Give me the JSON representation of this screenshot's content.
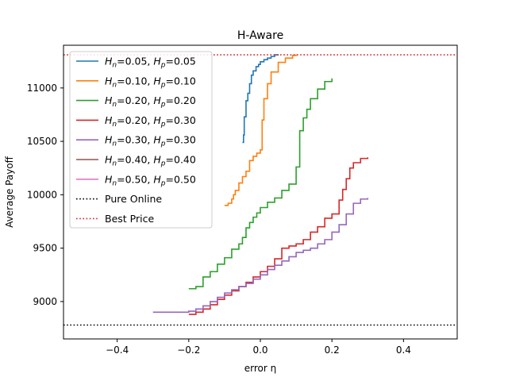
{
  "chart_data": {
    "type": "line",
    "title": "H-Aware",
    "xlabel": "error η",
    "ylabel": "Average Payoff",
    "xlim": [
      -0.55,
      0.55
    ],
    "ylim": [
      8650,
      11400
    ],
    "xticks": [
      -0.4,
      -0.2,
      0.0,
      0.2,
      0.4
    ],
    "xtick_labels": [
      "−0.4",
      "−0.2",
      "0.0",
      "0.2",
      "0.4"
    ],
    "yticks": [
      9000,
      9500,
      10000,
      10500,
      11000
    ],
    "ytick_labels": [
      "9000",
      "9500",
      "10000",
      "10500",
      "11000"
    ],
    "legend_position": "upper-left",
    "grid": false,
    "series": [
      {
        "name": "Hn=0.05, Hp=0.05",
        "legend_html": "<tspan font-style='italic'>H</tspan><tspan font-style='italic' font-size='9' dy='3'>n</tspan><tspan dy='-3'>=0.05, </tspan><tspan font-style='italic'>H</tspan><tspan font-style='italic' font-size='9' dy='3'>p</tspan><tspan dy='-3'>=0.05</tspan>",
        "color": "#1f77b4",
        "style": "solid",
        "x": [
          -0.05,
          -0.047,
          -0.045,
          -0.04,
          -0.035,
          -0.03,
          -0.025,
          -0.02,
          -0.012,
          -0.005,
          0.0,
          0.01,
          0.02,
          0.03,
          0.04,
          0.05
        ],
        "y": [
          10490,
          10560,
          10730,
          10880,
          10950,
          11040,
          11120,
          11160,
          11200,
          11220,
          11245,
          11265,
          11280,
          11295,
          11310,
          11315
        ]
      },
      {
        "name": "Hn=0.10, Hp=0.10",
        "color": "#ff7f0e",
        "style": "solid",
        "x": [
          -0.1,
          -0.09,
          -0.08,
          -0.075,
          -0.07,
          -0.06,
          -0.05,
          -0.04,
          -0.03,
          -0.02,
          -0.01,
          0.0,
          0.005,
          0.01,
          0.02,
          0.03,
          0.05,
          0.07,
          0.09,
          0.1
        ],
        "y": [
          9900,
          9920,
          9960,
          10000,
          10040,
          10110,
          10170,
          10220,
          10320,
          10360,
          10390,
          10420,
          10700,
          10900,
          11040,
          11150,
          11240,
          11280,
          11305,
          11315
        ]
      },
      {
        "name": "Hn=0.20, Hp=0.20",
        "color": "#2ca02c",
        "style": "solid",
        "x": [
          -0.2,
          -0.18,
          -0.16,
          -0.14,
          -0.12,
          -0.1,
          -0.08,
          -0.06,
          -0.05,
          -0.04,
          -0.03,
          -0.02,
          -0.01,
          0.0,
          0.02,
          0.04,
          0.06,
          0.08,
          0.1,
          0.11,
          0.12,
          0.13,
          0.14,
          0.16,
          0.18,
          0.2
        ],
        "y": [
          9120,
          9140,
          9230,
          9280,
          9350,
          9410,
          9490,
          9540,
          9600,
          9690,
          9740,
          9790,
          9830,
          9880,
          9930,
          9970,
          10040,
          10100,
          10260,
          10600,
          10720,
          10800,
          10900,
          10990,
          11060,
          11090
        ]
      },
      {
        "name": "Hn=0.20, Hp=0.30",
        "color": "#d62728",
        "style": "solid",
        "x": [
          -0.2,
          -0.18,
          -0.16,
          -0.14,
          -0.12,
          -0.1,
          -0.08,
          -0.06,
          -0.04,
          -0.02,
          0.0,
          0.02,
          0.04,
          0.06,
          0.08,
          0.1,
          0.12,
          0.14,
          0.16,
          0.18,
          0.2,
          0.22,
          0.23,
          0.24,
          0.25,
          0.26,
          0.28,
          0.3
        ],
        "y": [
          8880,
          8900,
          8930,
          8970,
          9020,
          9060,
          9100,
          9140,
          9180,
          9230,
          9280,
          9330,
          9400,
          9500,
          9520,
          9540,
          9580,
          9650,
          9700,
          9780,
          9820,
          9950,
          10050,
          10150,
          10250,
          10300,
          10340,
          10350
        ]
      },
      {
        "name": "Hn=0.30, Hp=0.30",
        "color": "#9467bd",
        "style": "solid",
        "x": [
          -0.3,
          -0.25,
          -0.2,
          -0.18,
          -0.16,
          -0.14,
          -0.12,
          -0.1,
          -0.08,
          -0.06,
          -0.04,
          -0.02,
          0.0,
          0.02,
          0.04,
          0.06,
          0.08,
          0.1,
          0.12,
          0.14,
          0.16,
          0.18,
          0.2,
          0.22,
          0.24,
          0.26,
          0.28,
          0.3
        ],
        "y": [
          8900,
          8900,
          8910,
          8930,
          8960,
          9000,
          9040,
          9080,
          9110,
          9140,
          9170,
          9210,
          9250,
          9300,
          9340,
          9380,
          9420,
          9460,
          9480,
          9500,
          9540,
          9580,
          9650,
          9720,
          9820,
          9920,
          9960,
          9970
        ]
      },
      {
        "name": "Hn=0.40, Hp=0.40",
        "color": "#8c564b",
        "style": "solid",
        "x": [],
        "y": []
      },
      {
        "name": "Hn=0.50, Hp=0.50",
        "color": "#e377c2",
        "style": "solid",
        "x": [],
        "y": []
      },
      {
        "name": "Pure Online",
        "color": "#000000",
        "style": "dotted",
        "hline": 8780
      },
      {
        "name": "Best Price",
        "color": "#d62728",
        "style": "dotted",
        "hline": 11310
      }
    ]
  }
}
